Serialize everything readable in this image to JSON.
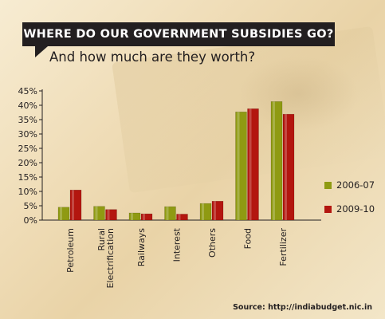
{
  "header": {
    "title": "WHERE DO OUR GOVERNMENT SUBSIDIES GO?",
    "subtitle": "And how much are they worth?"
  },
  "footer": {
    "source": "Source: http://indiabudget.nic.in"
  },
  "chart_data": {
    "type": "bar",
    "title": "WHERE DO OUR GOVERNMENT SUBSIDIES GO?",
    "subtitle": "And how much are they worth?",
    "categories": [
      "Petroleum",
      "Rural Electrification",
      "Railways",
      "Interest",
      "Others",
      "Food",
      "Fertilizer"
    ],
    "category_lines": [
      [
        "Petroleum"
      ],
      [
        "Rural",
        "Electrification"
      ],
      [
        "Railways"
      ],
      [
        "Interest"
      ],
      [
        "Others"
      ],
      [
        "Food"
      ],
      [
        "Fertilizer"
      ]
    ],
    "series": [
      {
        "name": "2006-07",
        "color": "#8f9a12",
        "values": [
          4.5,
          4.8,
          2.5,
          4.7,
          5.8,
          37.7,
          41.3
        ]
      },
      {
        "name": "2009-10",
        "color": "#b3160f",
        "values": [
          10.5,
          3.7,
          2.2,
          2.1,
          6.6,
          38.8,
          36.9
        ]
      }
    ],
    "yticks": [
      "0%",
      "5%",
      "10%",
      "15%",
      "20%",
      "25%",
      "30%",
      "35%",
      "40%",
      "45%"
    ],
    "ylim": [
      0,
      45
    ],
    "grid": false,
    "legend_position": "right"
  }
}
